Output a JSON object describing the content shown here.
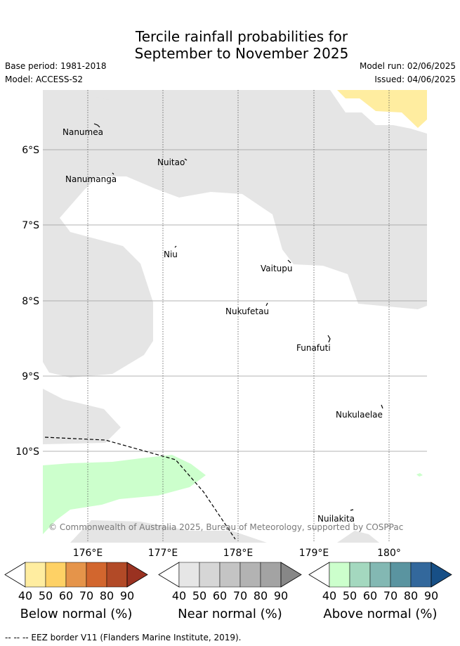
{
  "title_line1": "Tercile rainfall probabilities for",
  "title_line2": "September to November 2025",
  "base_period": "Base period: 1981-2018",
  "model": "Model: ACCESS-S2",
  "model_run": "Model run: 02/06/2025",
  "issued": "Issued: 04/06/2025",
  "map": {
    "lat_labels": [
      "6°S",
      "7°S",
      "8°S",
      "9°S",
      "10°S"
    ],
    "lon_labels": [
      "176°E",
      "177°E",
      "178°E",
      "179°E",
      "180°"
    ],
    "places": [
      {
        "name": "Nanumea"
      },
      {
        "name": "Nuitao"
      },
      {
        "name": "Nanumanga"
      },
      {
        "name": "Niu"
      },
      {
        "name": "Vaitupu"
      },
      {
        "name": "Nukufetau"
      },
      {
        "name": "Funafuti"
      },
      {
        "name": "Nukulaelae"
      },
      {
        "name": "Nuilakita"
      }
    ],
    "copyright": "© Commonwealth of Australia 2025, Bureau of Meteorology, supported by COSPPac",
    "colors": {
      "near_normal_shade": "#e5e5e5",
      "below_normal_shade": "#ffeda0",
      "above_normal_shade": "#ccffcc"
    }
  },
  "colorbars": [
    {
      "name": "Below normal (%)",
      "ticks": [
        "40",
        "50",
        "60",
        "70",
        "80",
        "90"
      ],
      "colors": [
        "#ffffff",
        "#ffeda0",
        "#fed165",
        "#e5944a",
        "#d2662e",
        "#b24a27",
        "#9a3221"
      ]
    },
    {
      "name": "Near normal (%)",
      "ticks": [
        "40",
        "50",
        "60",
        "70",
        "80",
        "90"
      ],
      "colors": [
        "#ffffff",
        "#e6e6e6",
        "#d6d6d6",
        "#c4c4c4",
        "#b3b3b3",
        "#a3a3a3",
        "#878787"
      ]
    },
    {
      "name": "Above normal (%)",
      "ticks": [
        "40",
        "50",
        "60",
        "70",
        "80",
        "90"
      ],
      "colors": [
        "#ffffff",
        "#ccffcc",
        "#a4d8bf",
        "#83b8b3",
        "#5a94a0",
        "#33689c",
        "#174f86"
      ]
    }
  ],
  "footnote": "--  --  -- EEZ border V11 (Flanders Marine Institute, 2019)."
}
